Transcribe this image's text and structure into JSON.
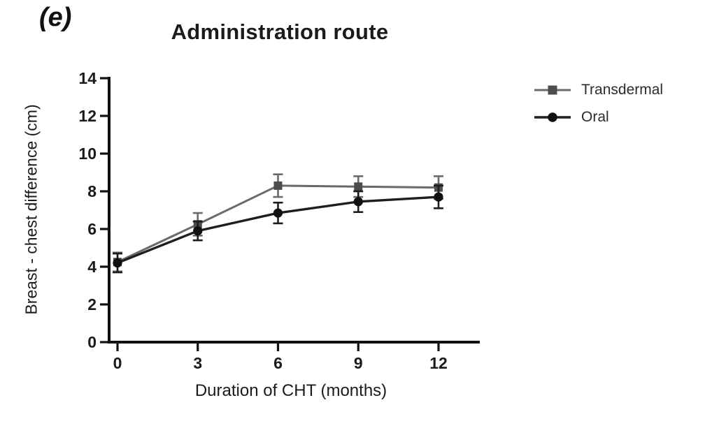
{
  "figure": {
    "panel_label": "(e)"
  },
  "chart_data": {
    "type": "line",
    "title": "Administration route",
    "xlabel": "Duration of CHT (months)",
    "ylabel": "Breast - chest difference (cm)",
    "x": [
      0,
      3,
      6,
      9,
      12
    ],
    "y_ticks": [
      0,
      2,
      4,
      6,
      8,
      10,
      12,
      14
    ],
    "ylim": [
      0,
      14
    ],
    "xlim": [
      -0.4,
      13.6
    ],
    "grid": false,
    "error_bars": true,
    "legend_position": "right",
    "axis_color": "#111111",
    "series": [
      {
        "name": "Transdermal",
        "marker": "square",
        "line_color": "#6a6a6a",
        "marker_color": "#4d4d4d",
        "values": [
          4.25,
          6.25,
          8.3,
          8.25,
          8.2
        ],
        "errors": [
          0.5,
          0.6,
          0.6,
          0.55,
          0.6
        ]
      },
      {
        "name": "Oral",
        "marker": "circle",
        "line_color": "#1e1e1e",
        "marker_color": "#111111",
        "values": [
          4.2,
          5.9,
          6.85,
          7.45,
          7.7
        ],
        "errors": [
          0.5,
          0.5,
          0.55,
          0.55,
          0.6
        ]
      }
    ]
  }
}
